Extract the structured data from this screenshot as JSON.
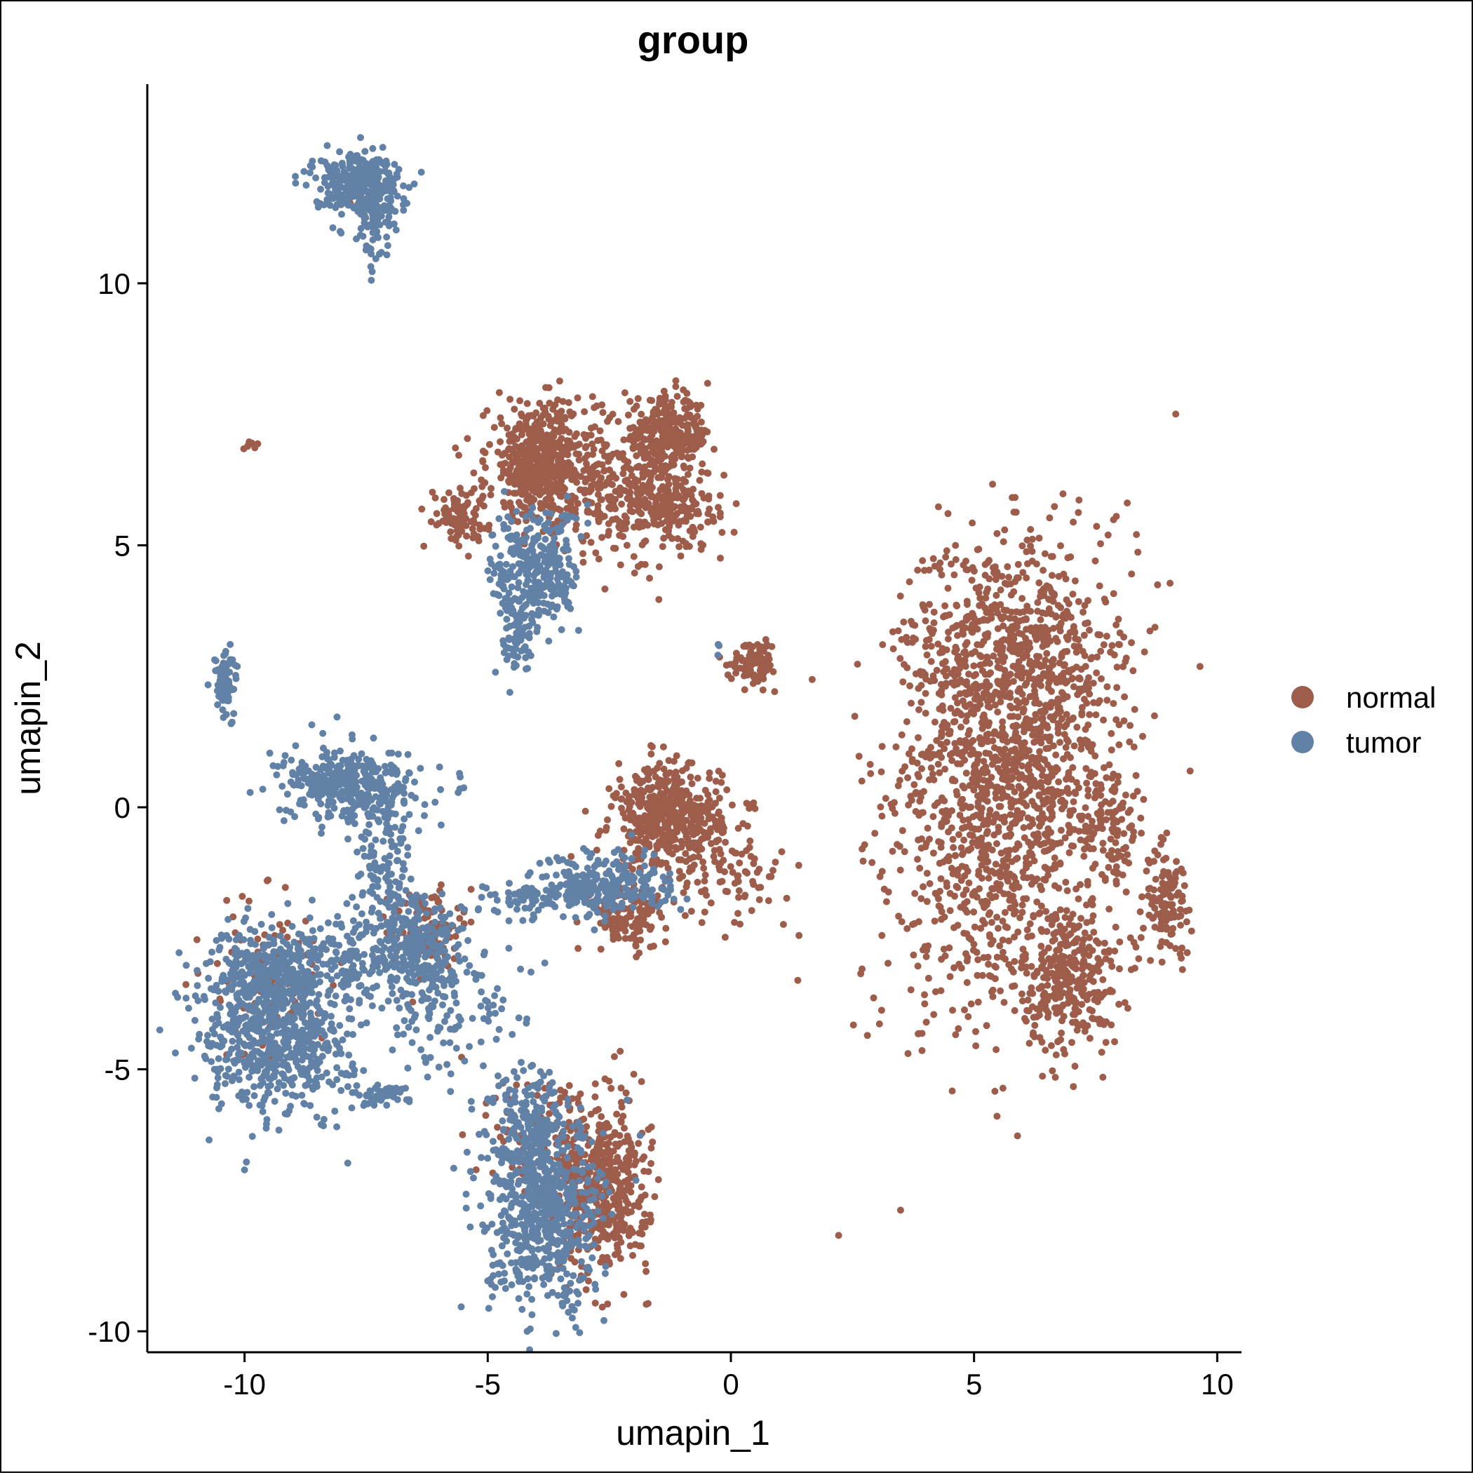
{
  "chart_data": {
    "type": "scatter",
    "title": "group",
    "xlabel": "umapin_1",
    "ylabel": "umapin_2",
    "xlim": [
      -12,
      10.5
    ],
    "ylim": [
      -10.4,
      13.8
    ],
    "x_ticks": [
      -10,
      -5,
      0,
      5,
      10
    ],
    "y_ticks": [
      -10,
      -5,
      0,
      5,
      10
    ],
    "x_tick_labels": [
      "-10",
      "-5",
      "0",
      "5",
      "10"
    ],
    "y_tick_labels": [
      "-10",
      "-5",
      "0",
      "5",
      "10"
    ],
    "grid": false,
    "legend_position": "right",
    "series": [
      {
        "name": "normal",
        "color": "#9E5D4A",
        "clusters": [
          {
            "cx": 5.8,
            "cy": 0.5,
            "sx": 1.1,
            "sy": 2.2,
            "n": 1400,
            "rot": -12
          },
          {
            "cx": 5.3,
            "cy": 3.0,
            "sx": 0.9,
            "sy": 1.1,
            "n": 400,
            "rot": 0
          },
          {
            "cx": 7.0,
            "cy": -3.3,
            "sx": 0.5,
            "sy": 0.7,
            "n": 300,
            "rot": 0
          },
          {
            "cx": 9.0,
            "cy": -1.8,
            "sx": 0.25,
            "sy": 0.5,
            "n": 110,
            "rot": 0
          },
          {
            "cx": 7.8,
            "cy": -0.5,
            "sx": 0.3,
            "sy": 0.6,
            "n": 90,
            "rot": 0
          },
          {
            "cx": -3.9,
            "cy": 6.6,
            "sx": 0.55,
            "sy": 0.55,
            "n": 520,
            "rot": 0
          },
          {
            "cx": -1.3,
            "cy": 7.1,
            "sx": 0.45,
            "sy": 0.35,
            "n": 300,
            "rot": 0
          },
          {
            "cx": -2.3,
            "cy": 5.9,
            "sx": 0.8,
            "sy": 0.55,
            "n": 260,
            "rot": 0
          },
          {
            "cx": -5.6,
            "cy": 5.6,
            "sx": 0.3,
            "sy": 0.25,
            "n": 90,
            "rot": 0
          },
          {
            "cx": -1.2,
            "cy": 5.7,
            "sx": 0.5,
            "sy": 0.4,
            "n": 160,
            "rot": 0
          },
          {
            "cx": -1.3,
            "cy": -0.2,
            "sx": 0.55,
            "sy": 0.5,
            "n": 480,
            "rot": 0
          },
          {
            "cx": -2.1,
            "cy": -2.1,
            "sx": 0.4,
            "sy": 0.3,
            "n": 120,
            "rot": 0
          },
          {
            "cx": 0.0,
            "cy": -1.2,
            "sx": 0.6,
            "sy": 0.5,
            "n": 90,
            "rot": 0
          },
          {
            "cx": 0.5,
            "cy": 2.8,
            "sx": 0.25,
            "sy": 0.2,
            "n": 90,
            "rot": 0
          },
          {
            "cx": -2.6,
            "cy": -7.3,
            "sx": 0.45,
            "sy": 0.8,
            "n": 450,
            "rot": 0
          },
          {
            "cx": -3.6,
            "cy": -6.5,
            "sx": 0.6,
            "sy": 0.8,
            "n": 150,
            "rot": 0
          },
          {
            "cx": -9.5,
            "cy": -3.2,
            "sx": 0.6,
            "sy": 0.8,
            "n": 100,
            "rot": 0
          },
          {
            "cx": -6.3,
            "cy": -2.3,
            "sx": 0.35,
            "sy": 0.4,
            "n": 90,
            "rot": 0
          },
          {
            "cx": -9.9,
            "cy": 6.9,
            "sx": 0.06,
            "sy": 0.05,
            "n": 8,
            "rot": 0
          },
          {
            "cx": -7.8,
            "cy": 11.8,
            "sx": 0.2,
            "sy": 0.15,
            "n": 6,
            "rot": 0
          }
        ]
      },
      {
        "name": "tumor",
        "color": "#6281A6",
        "clusters": [
          {
            "cx": -7.7,
            "cy": 11.9,
            "sx": 0.45,
            "sy": 0.3,
            "n": 320,
            "rot": 0
          },
          {
            "cx": -7.3,
            "cy": 11.3,
            "sx": 0.2,
            "sy": 0.45,
            "n": 80,
            "rot": 0
          },
          {
            "cx": -10.4,
            "cy": 2.4,
            "sx": 0.12,
            "sy": 0.35,
            "n": 80,
            "rot": 0
          },
          {
            "cx": -4.0,
            "cy": 4.5,
            "sx": 0.45,
            "sy": 0.6,
            "n": 300,
            "rot": 0
          },
          {
            "cx": -4.4,
            "cy": 3.3,
            "sx": 0.2,
            "sy": 0.4,
            "n": 70,
            "rot": 0
          },
          {
            "cx": -7.8,
            "cy": 0.4,
            "sx": 0.7,
            "sy": 0.35,
            "n": 380,
            "rot": 0
          },
          {
            "cx": -7.1,
            "cy": -1.3,
            "sx": 0.3,
            "sy": 0.6,
            "n": 130,
            "rot": 0
          },
          {
            "cx": -9.3,
            "cy": -4.3,
            "sx": 0.75,
            "sy": 0.8,
            "n": 650,
            "rot": 0
          },
          {
            "cx": -9.6,
            "cy": -3.2,
            "sx": 0.6,
            "sy": 0.5,
            "n": 200,
            "rot": 0
          },
          {
            "cx": -7.5,
            "cy": -3.0,
            "sx": 1.2,
            "sy": 0.4,
            "n": 260,
            "rot": 0
          },
          {
            "cx": -6.4,
            "cy": -2.6,
            "sx": 0.45,
            "sy": 0.5,
            "n": 180,
            "rot": 0
          },
          {
            "cx": -5.8,
            "cy": -4.0,
            "sx": 0.6,
            "sy": 0.6,
            "n": 90,
            "rot": 0
          },
          {
            "cx": -7.2,
            "cy": -5.5,
            "sx": 0.3,
            "sy": 0.1,
            "n": 50,
            "rot": 0
          },
          {
            "cx": -3.8,
            "cy": -7.8,
            "sx": 0.6,
            "sy": 0.9,
            "n": 600,
            "rot": 0
          },
          {
            "cx": -4.2,
            "cy": -6.0,
            "sx": 0.4,
            "sy": 0.6,
            "n": 180,
            "rot": 0
          },
          {
            "cx": -2.6,
            "cy": -1.5,
            "sx": 0.7,
            "sy": 0.3,
            "n": 260,
            "rot": 0
          },
          {
            "cx": -4.2,
            "cy": -1.8,
            "sx": 0.6,
            "sy": 0.15,
            "n": 60,
            "rot": 0
          },
          {
            "cx": -0.3,
            "cy": 3.0,
            "sx": 0.05,
            "sy": 0.05,
            "n": 3,
            "rot": 0
          }
        ]
      }
    ]
  }
}
